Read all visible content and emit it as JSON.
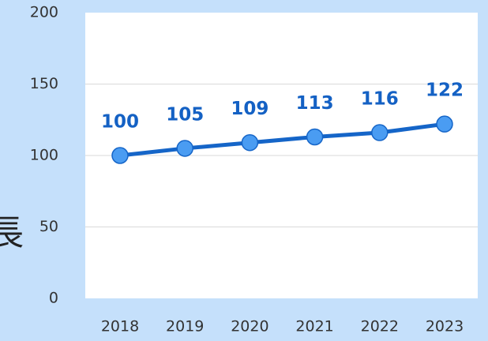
{
  "chart_data": {
    "type": "line",
    "ylabel": "長",
    "categories": [
      "2018",
      "2019",
      "2020",
      "2021",
      "2022",
      "2023"
    ],
    "series": [
      {
        "name": null,
        "color": "#1565c8",
        "marker_color": "#4a9cf2",
        "values": [
          100,
          105,
          109,
          113,
          116,
          122
        ]
      }
    ],
    "ylim": [
      0,
      200
    ],
    "yticks": [
      0,
      50,
      100,
      150,
      200
    ],
    "grid": true,
    "background": "#c5e0fb",
    "plot_background": "#ffffff"
  }
}
